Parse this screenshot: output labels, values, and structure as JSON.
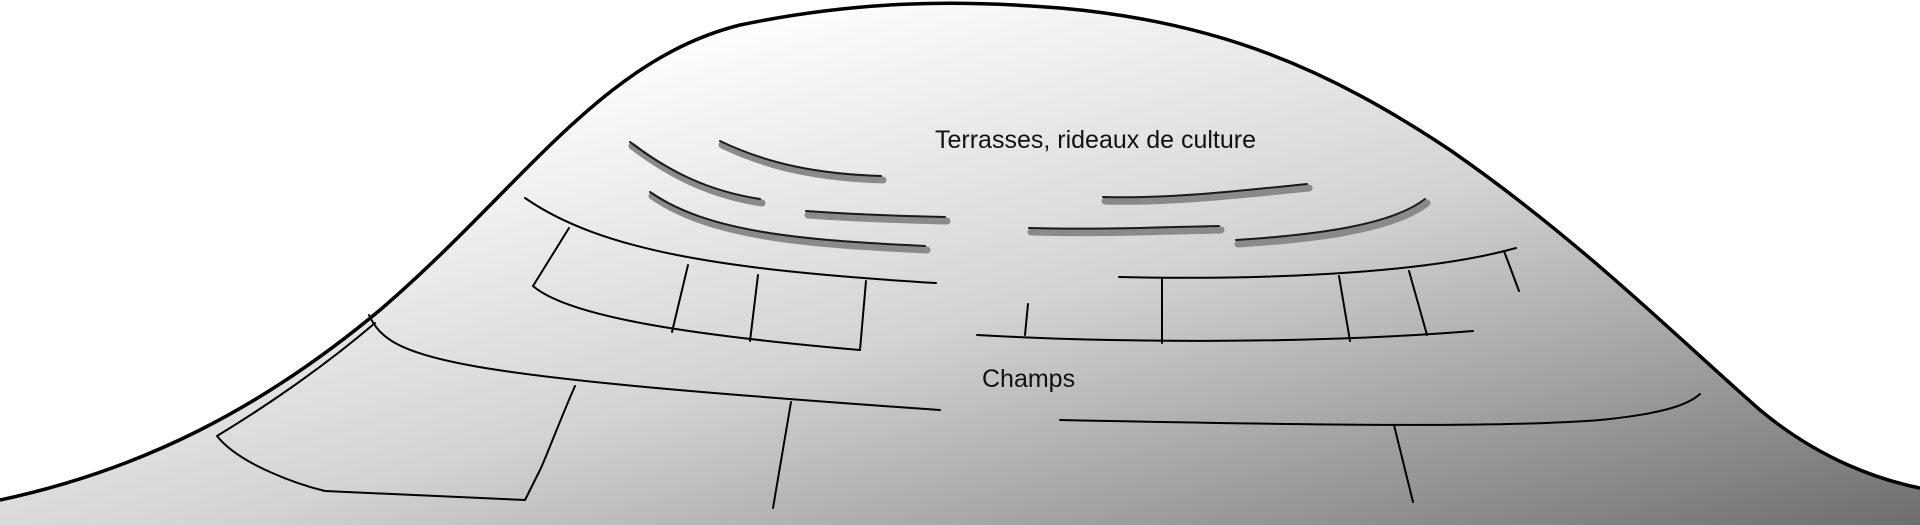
{
  "labels": {
    "terraces": "Terrasses, rideaux de culture",
    "fields": "Champs"
  },
  "colors": {
    "hill_light": "#ffffff",
    "hill_dark": "#6e6e6e",
    "outline": "#000000",
    "terrace_shadow": "#8a8a8a"
  }
}
